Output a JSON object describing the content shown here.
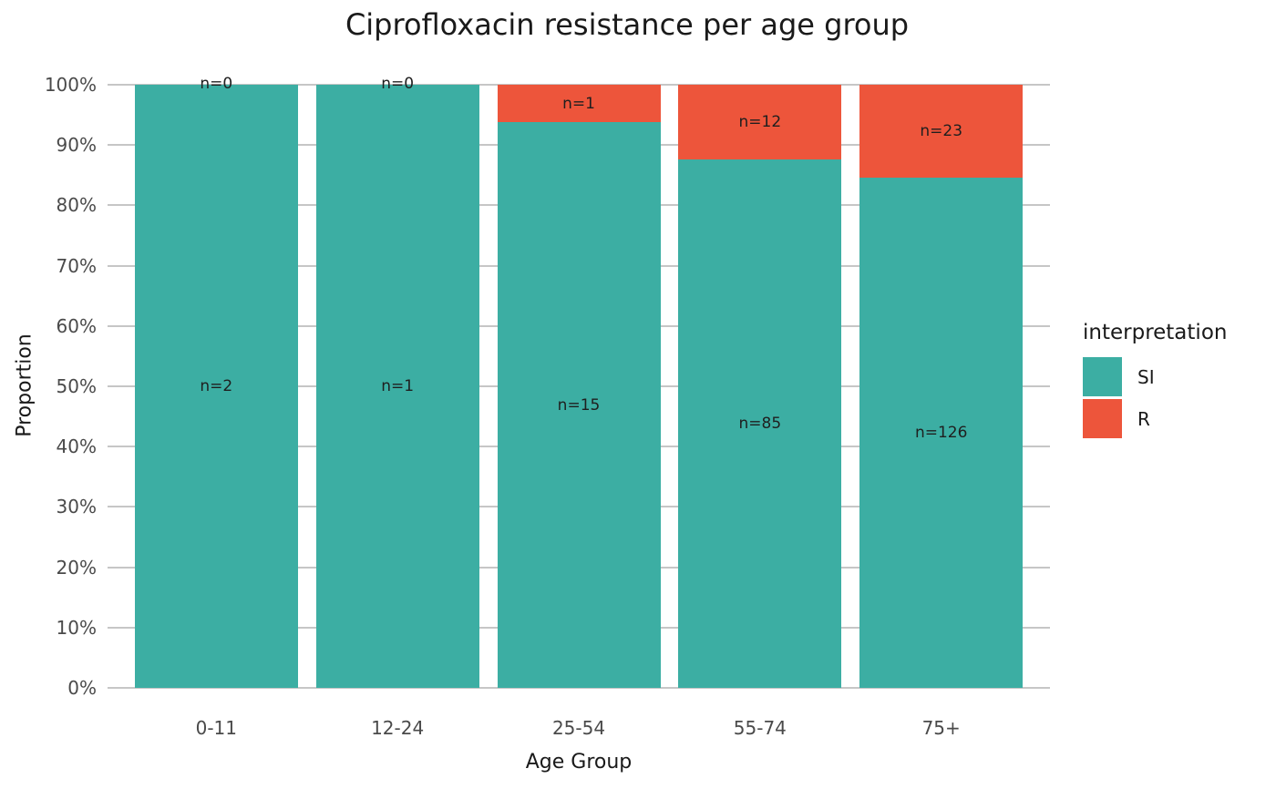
{
  "title": "Ciprofloxacin resistance per age group",
  "axes": {
    "x_label": "Age Group",
    "y_label": "Proportion"
  },
  "legend": {
    "title": "interpretation",
    "position": "right",
    "items": [
      {
        "label": "SI",
        "color": "#3CAEA3"
      },
      {
        "label": "R",
        "color": "#ED553B"
      }
    ]
  },
  "chart_data": {
    "type": "bar",
    "stacked": true,
    "normalized": "percent (each bar fills to 100%)",
    "title": "Ciprofloxacin resistance per age group",
    "xlabel": "Age Group",
    "ylabel": "Proportion",
    "categories": [
      "0-11",
      "12-24",
      "25-54",
      "55-74",
      "75+"
    ],
    "series": [
      {
        "name": "SI",
        "color": "#3CAEA3",
        "counts": [
          2,
          1,
          15,
          85,
          126
        ],
        "labels": [
          "n=2",
          "n=1",
          "n=15",
          "n=85",
          "n=126"
        ],
        "percent_of_bar": [
          100,
          100,
          93.75,
          87.63,
          84.56
        ]
      },
      {
        "name": "R",
        "color": "#ED553B",
        "counts": [
          0,
          0,
          1,
          12,
          23
        ],
        "labels": [
          "n=0",
          "n=0",
          "n=1",
          "n=12",
          "n=23"
        ],
        "percent_of_bar": [
          0,
          0,
          6.25,
          12.37,
          15.44
        ]
      }
    ],
    "stack_order_top_to_bottom": [
      "R",
      "SI"
    ],
    "yticks": [
      "0%",
      "10%",
      "20%",
      "30%",
      "40%",
      "50%",
      "60%",
      "70%",
      "80%",
      "90%",
      "100%"
    ],
    "ylim": [
      0,
      1
    ],
    "grid": "horizontal major gridlines only",
    "legend_position": "right"
  },
  "colors": {
    "si": "#3CAEA3",
    "r": "#ED553B",
    "grid": "#c6c6c6",
    "axis_text": "#4a4a4a",
    "text": "#1a1a1a",
    "background": "#ffffff"
  }
}
